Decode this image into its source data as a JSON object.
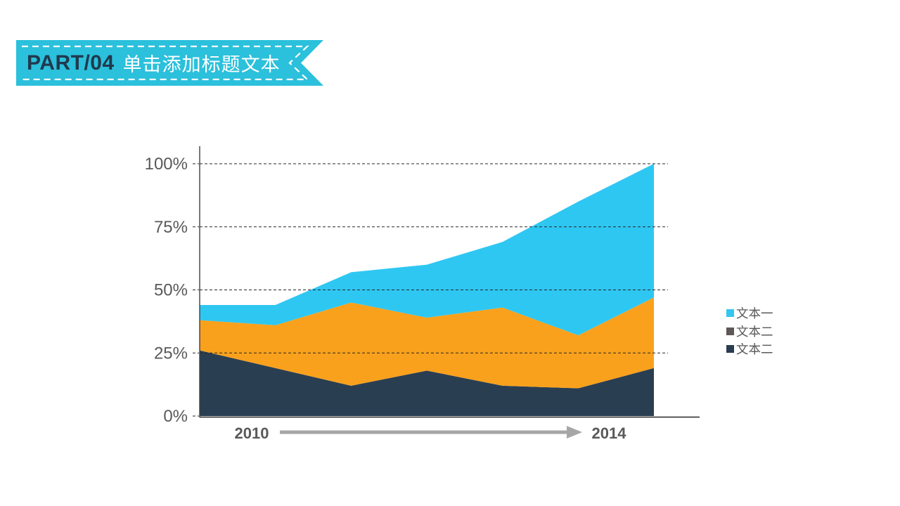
{
  "header": {
    "part_label": "PART/04",
    "title": "单击添加标题文本",
    "colors": {
      "ribbon": "#2BC0DB",
      "part_text": "#20394E",
      "title_text": "#FFFFFF",
      "stitch": "#FFFFFF"
    }
  },
  "chart_data": {
    "type": "area",
    "stacked": true,
    "title": "",
    "x_axis": {
      "start_label": "2010",
      "end_label": "2014",
      "arrow_color": "#A6A6A6",
      "label_color": "#595959"
    },
    "y_axis": {
      "tick_labels": [
        "100%",
        "75%",
        "50%",
        "25%",
        "0%"
      ],
      "tick_values": [
        100,
        75,
        50,
        25,
        0
      ],
      "range": [
        0,
        100
      ],
      "label_color": "#595959"
    },
    "grid": {
      "style": "dashed",
      "color": "#262626",
      "tick_lines": [
        100,
        75,
        50,
        25
      ]
    },
    "series_note": "stacked percentage segments, bottom to top, 7 evenly spaced points from 2010 to 2014",
    "series": [
      {
        "legend_label": "文本二",
        "color": "#2A3E52",
        "values": [
          26,
          19,
          12,
          18,
          12,
          11,
          19
        ]
      },
      {
        "legend_label": "文本二",
        "color": "#F9A11C",
        "values": [
          12,
          17,
          33,
          21,
          31,
          21,
          28
        ]
      },
      {
        "legend_label": "文本一",
        "color": "#2EC7F2",
        "values": [
          6,
          8,
          12,
          21,
          26,
          53,
          53
        ]
      }
    ],
    "legend": {
      "position": "right",
      "text_color": "#595959",
      "items": [
        {
          "label": "文本一",
          "swatch_color": "#33C6F0"
        },
        {
          "label": "文本二",
          "swatch_color": "#5F5858"
        },
        {
          "label": "文本二",
          "swatch_color": "#2A3C50"
        }
      ]
    }
  }
}
